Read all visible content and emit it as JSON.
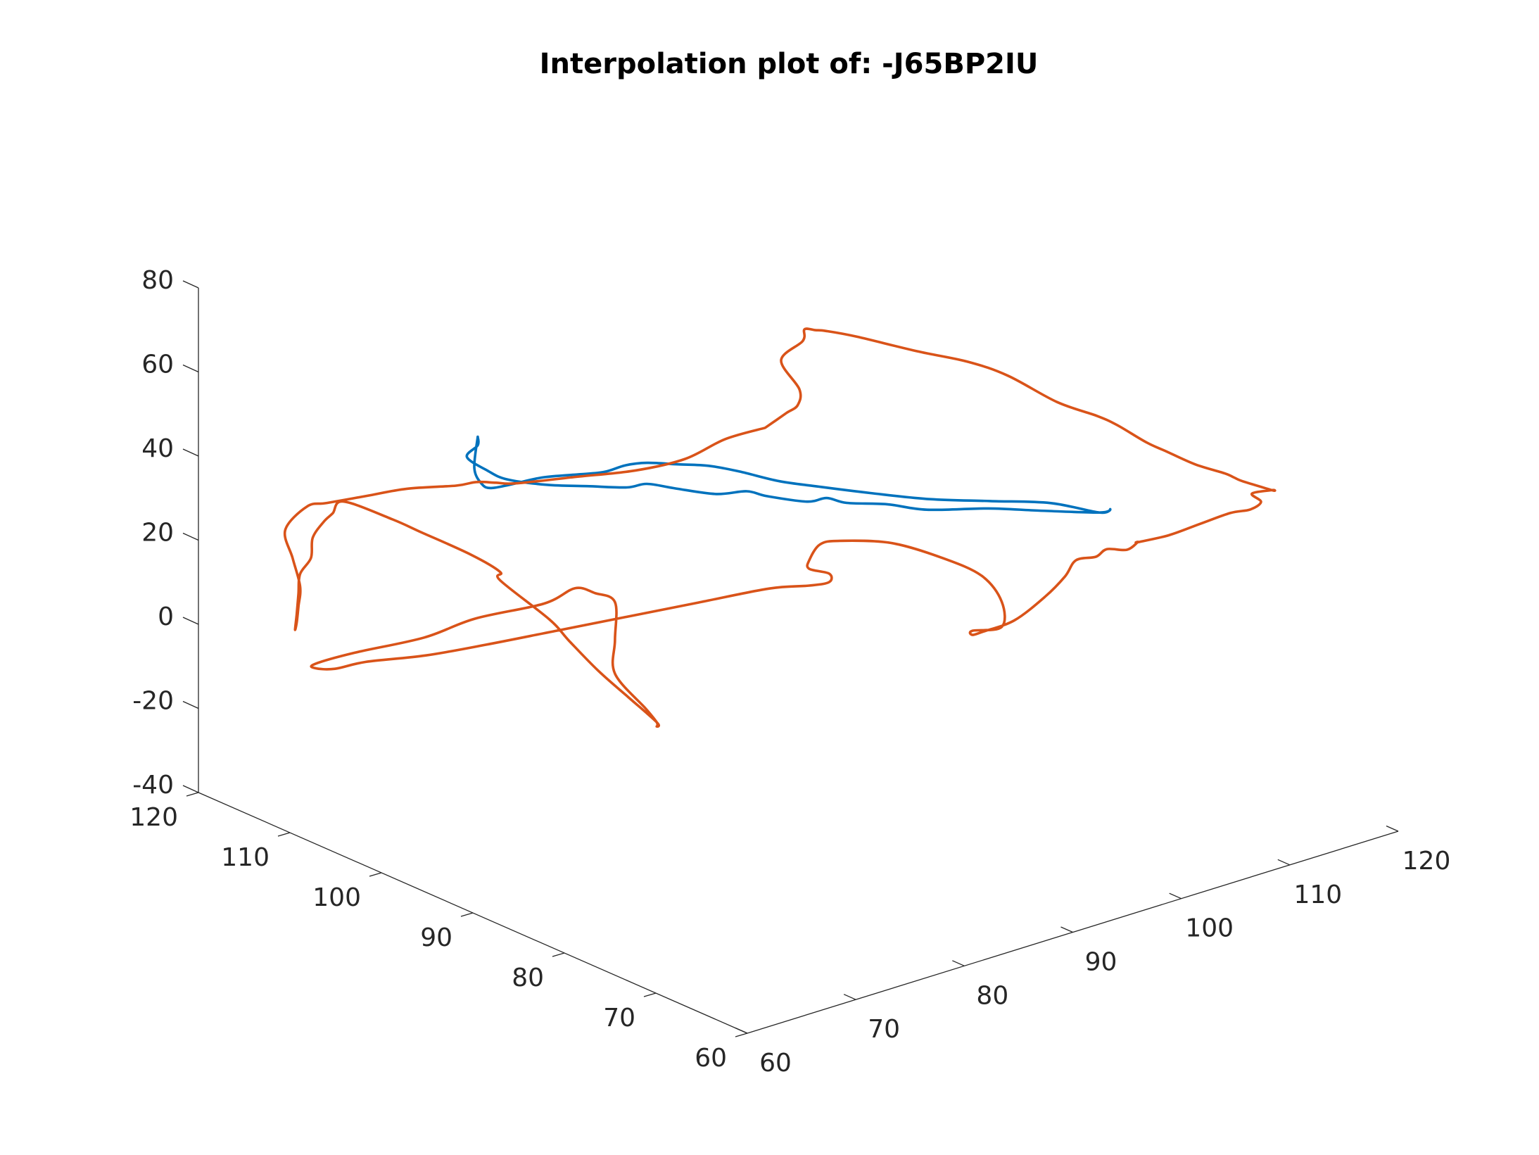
{
  "chart_data": {
    "type": "line",
    "title": "Interpolation plot of: -J65BP2IU",
    "xlabel": "",
    "ylabel": "",
    "zlabel": "",
    "xlim": [
      60,
      120
    ],
    "ylim": [
      60,
      120
    ],
    "zlim": [
      -40,
      80
    ],
    "x_ticks": [
      "60",
      "70",
      "80",
      "90",
      "100",
      "110",
      "120"
    ],
    "y_ticks": [
      "60",
      "70",
      "80",
      "90",
      "100",
      "110",
      "120"
    ],
    "z_ticks": [
      "-40",
      "-20",
      "0",
      "20",
      "40",
      "60",
      "80"
    ],
    "grid": false,
    "colors": {
      "series_1": "#0072BD",
      "series_2": "#D95319",
      "axes": "#262626"
    },
    "series": [
      {
        "color": "#0072BD",
        "points_xyz": [
          [
            79,
            112,
            37
          ],
          [
            77,
            110,
            33
          ],
          [
            76,
            108,
            32
          ],
          [
            76,
            107,
            32
          ],
          [
            77,
            106,
            33
          ],
          [
            79,
            105,
            34
          ],
          [
            81,
            104,
            34
          ],
          [
            83,
            103,
            34
          ],
          [
            85,
            103,
            34
          ],
          [
            87,
            103,
            33
          ],
          [
            89,
            102,
            32
          ],
          [
            91,
            101,
            31
          ],
          [
            93,
            100,
            29
          ],
          [
            95,
            98,
            27
          ],
          [
            97,
            96,
            26
          ],
          [
            100,
            94,
            24
          ],
          [
            103,
            91,
            23
          ],
          [
            106,
            88,
            23
          ],
          [
            109,
            85,
            23
          ],
          [
            111,
            82,
            22
          ],
          [
            112,
            82,
            22
          ],
          [
            111,
            82,
            22
          ],
          [
            108,
            85,
            22
          ],
          [
            105,
            87,
            23
          ],
          [
            101,
            89,
            24
          ],
          [
            99,
            91,
            25
          ],
          [
            97,
            93,
            25
          ],
          [
            96,
            94,
            26
          ],
          [
            95,
            95,
            25
          ],
          [
            93,
            97,
            26
          ],
          [
            92,
            98,
            27
          ],
          [
            90,
            99,
            27
          ],
          [
            88,
            101,
            28
          ],
          [
            87,
            103,
            28
          ],
          [
            86,
            104,
            27
          ],
          [
            84,
            106,
            27
          ],
          [
            82,
            108,
            27
          ],
          [
            80,
            110,
            28
          ],
          [
            79,
            111,
            30
          ],
          [
            78,
            112,
            33
          ],
          [
            79,
            112,
            35
          ],
          [
            79,
            112,
            37
          ]
        ]
      },
      {
        "color": "#D95319",
        "points_xyz": [
          [
            92,
            96,
            44
          ],
          [
            90,
            98,
            41
          ],
          [
            88,
            100,
            36
          ],
          [
            86,
            103,
            32
          ],
          [
            83,
            106,
            30
          ],
          [
            80,
            109,
            28
          ],
          [
            79,
            110,
            28
          ],
          [
            78,
            111,
            28
          ],
          [
            77,
            112,
            27
          ],
          [
            75,
            115,
            25
          ],
          [
            73,
            117,
            23
          ],
          [
            71,
            119,
            21
          ],
          [
            70,
            120,
            20
          ],
          [
            68,
            120,
            16
          ],
          [
            67,
            118,
            12
          ],
          [
            66,
            116,
            8
          ],
          [
            65,
            115,
            5
          ],
          [
            64,
            114,
            3
          ],
          [
            63,
            113,
            3
          ],
          [
            64,
            114,
            5
          ],
          [
            65,
            115,
            8
          ],
          [
            66,
            116,
            11
          ],
          [
            67,
            116,
            14
          ],
          [
            68,
            117,
            17
          ],
          [
            69,
            117,
            20
          ],
          [
            69,
            116,
            23
          ],
          [
            70,
            116,
            25
          ],
          [
            72,
            113,
            22
          ],
          [
            73,
            111,
            20
          ],
          [
            75,
            108,
            16
          ],
          [
            76,
            106,
            13
          ],
          [
            76,
            106,
            11
          ],
          [
            78,
            103,
            3
          ],
          [
            79,
            102,
            -2
          ],
          [
            80,
            100,
            -8
          ],
          [
            81,
            98,
            -13
          ],
          [
            82,
            96,
            -18
          ],
          [
            82,
            96,
            -19
          ],
          [
            82,
            96,
            -18
          ],
          [
            81,
            96,
            -14
          ],
          [
            79,
            97,
            -5
          ],
          [
            79,
            97,
            3
          ],
          [
            79,
            97,
            12
          ],
          [
            78,
            98,
            14
          ],
          [
            77,
            99,
            15
          ],
          [
            75,
            100,
            12
          ],
          [
            72,
            104,
            7
          ],
          [
            69,
            106,
            3
          ],
          [
            66,
            110,
            -2
          ],
          [
            64,
            112,
            -5
          ],
          [
            64,
            112,
            -6
          ],
          [
            65,
            111,
            -6
          ],
          [
            67,
            110,
            -5
          ],
          [
            70,
            107,
            -3
          ],
          [
            73,
            104,
            0
          ],
          [
            77,
            101,
            3
          ],
          [
            81,
            98,
            6
          ],
          [
            85,
            95,
            9
          ],
          [
            89,
            92,
            12
          ],
          [
            91,
            90,
            13
          ],
          [
            92,
            89,
            14
          ],
          [
            92,
            89,
            16
          ],
          [
            91,
            90,
            17
          ],
          [
            91,
            90,
            19
          ],
          [
            92,
            90,
            22
          ],
          [
            93,
            89,
            23
          ],
          [
            96,
            87,
            22
          ],
          [
            99,
            85,
            18
          ],
          [
            101,
            83,
            14
          ],
          [
            102,
            82,
            8
          ],
          [
            102,
            82,
            2
          ],
          [
            101,
            84,
            0
          ],
          [
            101,
            84,
            -1
          ],
          [
            102,
            84,
            -1
          ],
          [
            104,
            83,
            1
          ],
          [
            106,
            82,
            6
          ],
          [
            107,
            81,
            11
          ],
          [
            108,
            81,
            14
          ],
          [
            109,
            80,
            15
          ],
          [
            110,
            80,
            16
          ],
          [
            111,
            79,
            16
          ],
          [
            112,
            79,
            17
          ],
          [
            112,
            79,
            17
          ],
          [
            114,
            78,
            18
          ],
          [
            116,
            77,
            20
          ],
          [
            118,
            76,
            22
          ],
          [
            119,
            75,
            23
          ],
          [
            120,
            75,
            24
          ],
          [
            120,
            76,
            25
          ],
          [
            121,
            75,
            26
          ],
          [
            121,
            75,
            26
          ],
          [
            120,
            77,
            27
          ],
          [
            120,
            78,
            27
          ],
          [
            120,
            79,
            27
          ],
          [
            119,
            81,
            28
          ],
          [
            118,
            83,
            30
          ],
          [
            117,
            84,
            32
          ],
          [
            116,
            86,
            35
          ],
          [
            115,
            87,
            37
          ],
          [
            113,
            89,
            40
          ],
          [
            111,
            92,
            45
          ],
          [
            109,
            94,
            48
          ],
          [
            106,
            96,
            51
          ],
          [
            103,
            99,
            54
          ],
          [
            101,
            100,
            56
          ],
          [
            100,
            100,
            57
          ],
          [
            99,
            100,
            58
          ],
          [
            98,
            99,
            57
          ],
          [
            96,
            99,
            54
          ],
          [
            96,
            97,
            49
          ],
          [
            95,
            96,
            47
          ],
          [
            94,
            96,
            46
          ],
          [
            93,
            96,
            45
          ],
          [
            92,
            96,
            44
          ]
        ]
      }
    ]
  }
}
